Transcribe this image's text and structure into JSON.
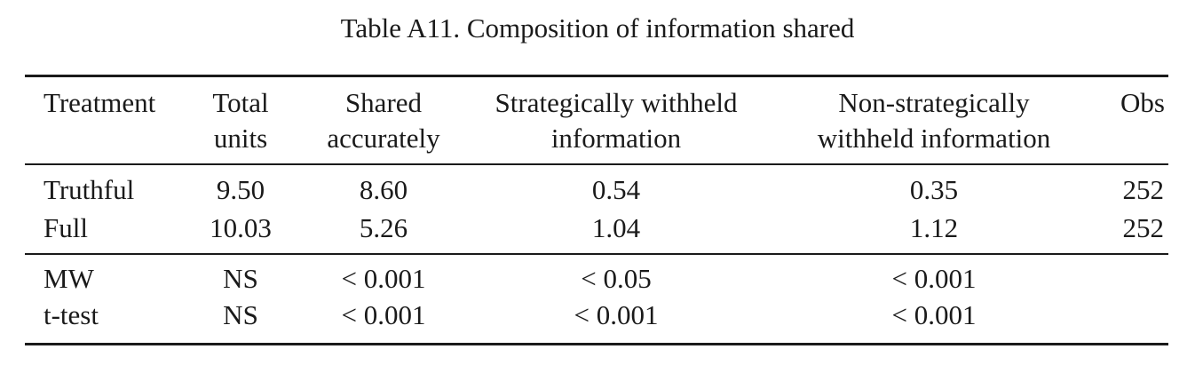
{
  "caption": "Table A11. Composition of information shared",
  "table": {
    "headers": [
      {
        "line1": "Treatment",
        "line2": ""
      },
      {
        "line1": "Total",
        "line2": "units"
      },
      {
        "line1": "Shared",
        "line2": "accurately"
      },
      {
        "line1": "Strategically withheld",
        "line2": "information"
      },
      {
        "line1": "Non-strategically",
        "line2": "withheld information"
      },
      {
        "line1": "Obs",
        "line2": ""
      }
    ],
    "rows": [
      [
        "Truthful",
        "9.50",
        "8.60",
        "0.54",
        "0.35",
        "252"
      ],
      [
        "Full",
        "10.03",
        "5.26",
        "1.04",
        "1.12",
        "252"
      ]
    ],
    "tests": [
      [
        "MW",
        "NS",
        "< 0.001",
        "< 0.05",
        "< 0.001"
      ],
      [
        "t-test",
        "NS",
        "< 0.001",
        "< 0.001",
        "< 0.001"
      ]
    ]
  }
}
